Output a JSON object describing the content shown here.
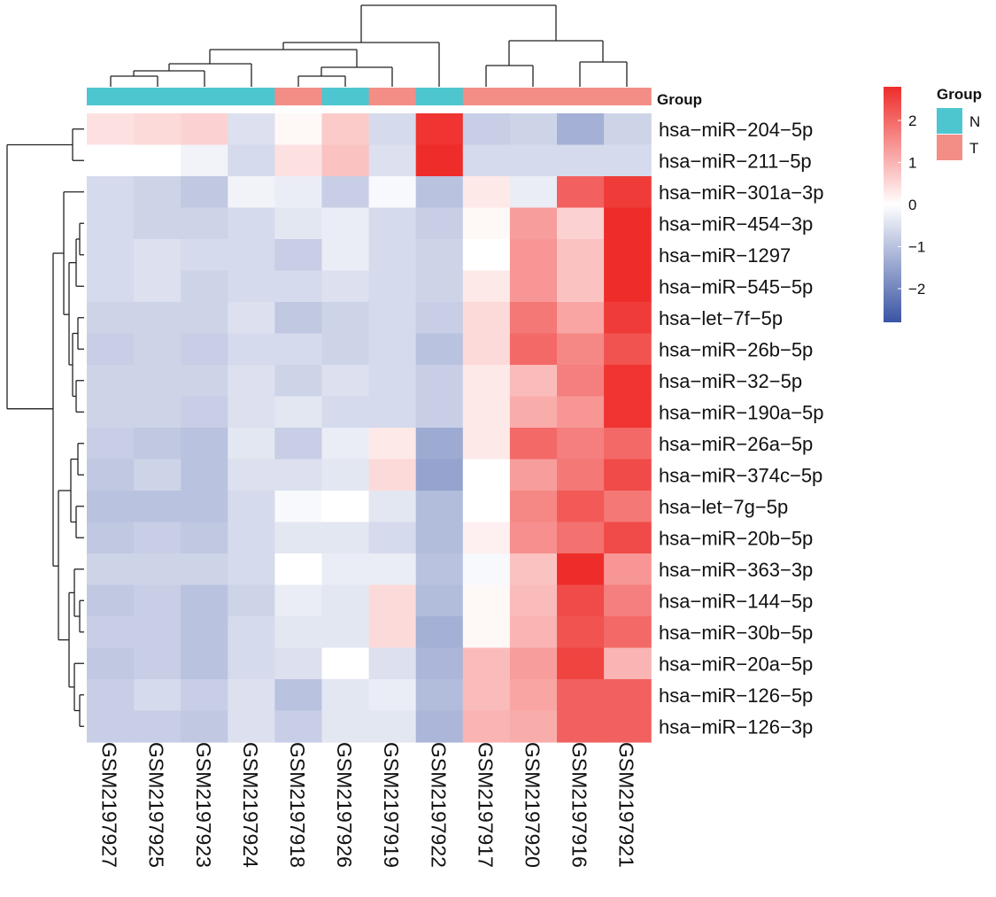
{
  "chart_data": {
    "type": "heatmap",
    "title": "",
    "annotation_title": "Group",
    "legend": {
      "title": "Group",
      "entries": [
        {
          "label": "N",
          "color": "#4DC6CF"
        },
        {
          "label": "T",
          "color": "#F28E86"
        }
      ]
    },
    "colorbar": {
      "range": [
        -2.8,
        2.8
      ],
      "ticks": [
        2,
        1,
        0,
        -1,
        -2
      ],
      "tick_labels": [
        "2",
        "1",
        "0",
        "−1",
        "−2"
      ],
      "colors": {
        "low": "#3A54A4",
        "mid": "#FFFFFF",
        "high": "#EE2D2A"
      }
    },
    "samples": [
      "GSM2197927",
      "GSM2197925",
      "GSM2197923",
      "GSM2197924",
      "GSM2197918",
      "GSM2197926",
      "GSM2197919",
      "GSM2197922",
      "GSM2197917",
      "GSM2197920",
      "GSM2197916",
      "GSM2197921"
    ],
    "groups": [
      "N",
      "N",
      "N",
      "N",
      "T",
      "N",
      "T",
      "N",
      "T",
      "T",
      "T",
      "T"
    ],
    "genes": [
      "hsa−miR−204−5p",
      "hsa−miR−211−5p",
      "hsa−miR−301a−3p",
      "hsa−miR−454−3p",
      "hsa−miR−1297",
      "hsa−miR−545−5p",
      "hsa−let−7f−5p",
      "hsa−miR−26b−5p",
      "hsa−miR−32−5p",
      "hsa−miR−190a−5p",
      "hsa−miR−26a−5p",
      "hsa−miR−374c−5p",
      "hsa−let−7g−5p",
      "hsa−miR−20b−5p",
      "hsa−miR−363−3p",
      "hsa−miR−144−5p",
      "hsa−miR−30b−5p",
      "hsa−miR−20a−5p",
      "hsa−miR−126−5p",
      "hsa−miR−126−3p"
    ],
    "values": [
      [
        0.4,
        0.5,
        0.6,
        -0.5,
        0.1,
        0.7,
        -0.6,
        2.7,
        -0.8,
        -0.7,
        -1.3,
        -0.7
      ],
      [
        0.0,
        0.0,
        -0.2,
        -0.6,
        0.4,
        0.8,
        -0.5,
        2.8,
        -0.6,
        -0.6,
        -0.6,
        -0.6
      ],
      [
        -0.6,
        -0.7,
        -0.9,
        -0.2,
        -0.3,
        -0.8,
        -0.1,
        -1.0,
        0.3,
        -0.3,
        2.1,
        2.6
      ],
      [
        -0.6,
        -0.7,
        -0.7,
        -0.6,
        -0.4,
        -0.3,
        -0.6,
        -0.8,
        0.1,
        1.3,
        0.6,
        2.8
      ],
      [
        -0.6,
        -0.5,
        -0.6,
        -0.6,
        -0.8,
        -0.3,
        -0.6,
        -0.7,
        0.0,
        1.4,
        0.8,
        2.8
      ],
      [
        -0.6,
        -0.5,
        -0.7,
        -0.6,
        -0.6,
        -0.5,
        -0.6,
        -0.7,
        0.3,
        1.4,
        0.8,
        2.8
      ],
      [
        -0.7,
        -0.7,
        -0.7,
        -0.5,
        -0.9,
        -0.7,
        -0.6,
        -0.8,
        0.5,
        1.8,
        1.2,
        2.6
      ],
      [
        -0.8,
        -0.7,
        -0.8,
        -0.6,
        -0.6,
        -0.7,
        -0.6,
        -1.0,
        0.5,
        2.0,
        1.6,
        2.3
      ],
      [
        -0.7,
        -0.7,
        -0.7,
        -0.5,
        -0.7,
        -0.5,
        -0.6,
        -0.8,
        0.3,
        0.9,
        1.7,
        2.7
      ],
      [
        -0.7,
        -0.7,
        -0.8,
        -0.5,
        -0.4,
        -0.6,
        -0.6,
        -0.8,
        0.3,
        1.1,
        1.4,
        2.7
      ],
      [
        -0.8,
        -0.9,
        -1.0,
        -0.4,
        -0.8,
        -0.3,
        0.3,
        -1.4,
        0.3,
        2.0,
        1.7,
        2.0
      ],
      [
        -0.9,
        -0.7,
        -1.0,
        -0.5,
        -0.5,
        -0.4,
        0.5,
        -1.5,
        0.0,
        1.3,
        1.8,
        2.4
      ],
      [
        -1.0,
        -1.0,
        -1.0,
        -0.6,
        -0.1,
        0.0,
        -0.4,
        -1.1,
        0.0,
        1.6,
        2.2,
        1.8
      ],
      [
        -0.9,
        -0.8,
        -0.9,
        -0.6,
        -0.4,
        -0.4,
        -0.6,
        -1.1,
        0.2,
        1.5,
        1.9,
        2.4
      ],
      [
        -0.7,
        -0.7,
        -0.7,
        -0.6,
        0.0,
        -0.3,
        -0.3,
        -1.0,
        -0.1,
        0.8,
        2.8,
        1.4
      ],
      [
        -0.9,
        -0.8,
        -1.0,
        -0.7,
        -0.3,
        -0.4,
        0.5,
        -1.1,
        0.1,
        0.9,
        2.4,
        1.7
      ],
      [
        -0.8,
        -0.8,
        -1.0,
        -0.6,
        -0.4,
        -0.4,
        0.5,
        -1.3,
        0.1,
        1.0,
        2.3,
        2.0
      ],
      [
        -0.9,
        -0.8,
        -1.0,
        -0.6,
        -0.5,
        0.0,
        -0.5,
        -1.2,
        0.9,
        1.3,
        2.5,
        1.0
      ],
      [
        -0.8,
        -0.6,
        -0.8,
        -0.5,
        -1.0,
        -0.4,
        -0.3,
        -1.1,
        0.9,
        1.2,
        2.1,
        2.1
      ],
      [
        -0.8,
        -0.8,
        -0.9,
        -0.5,
        -0.8,
        -0.4,
        -0.4,
        -1.2,
        1.0,
        1.1,
        2.1,
        2.1
      ]
    ]
  }
}
